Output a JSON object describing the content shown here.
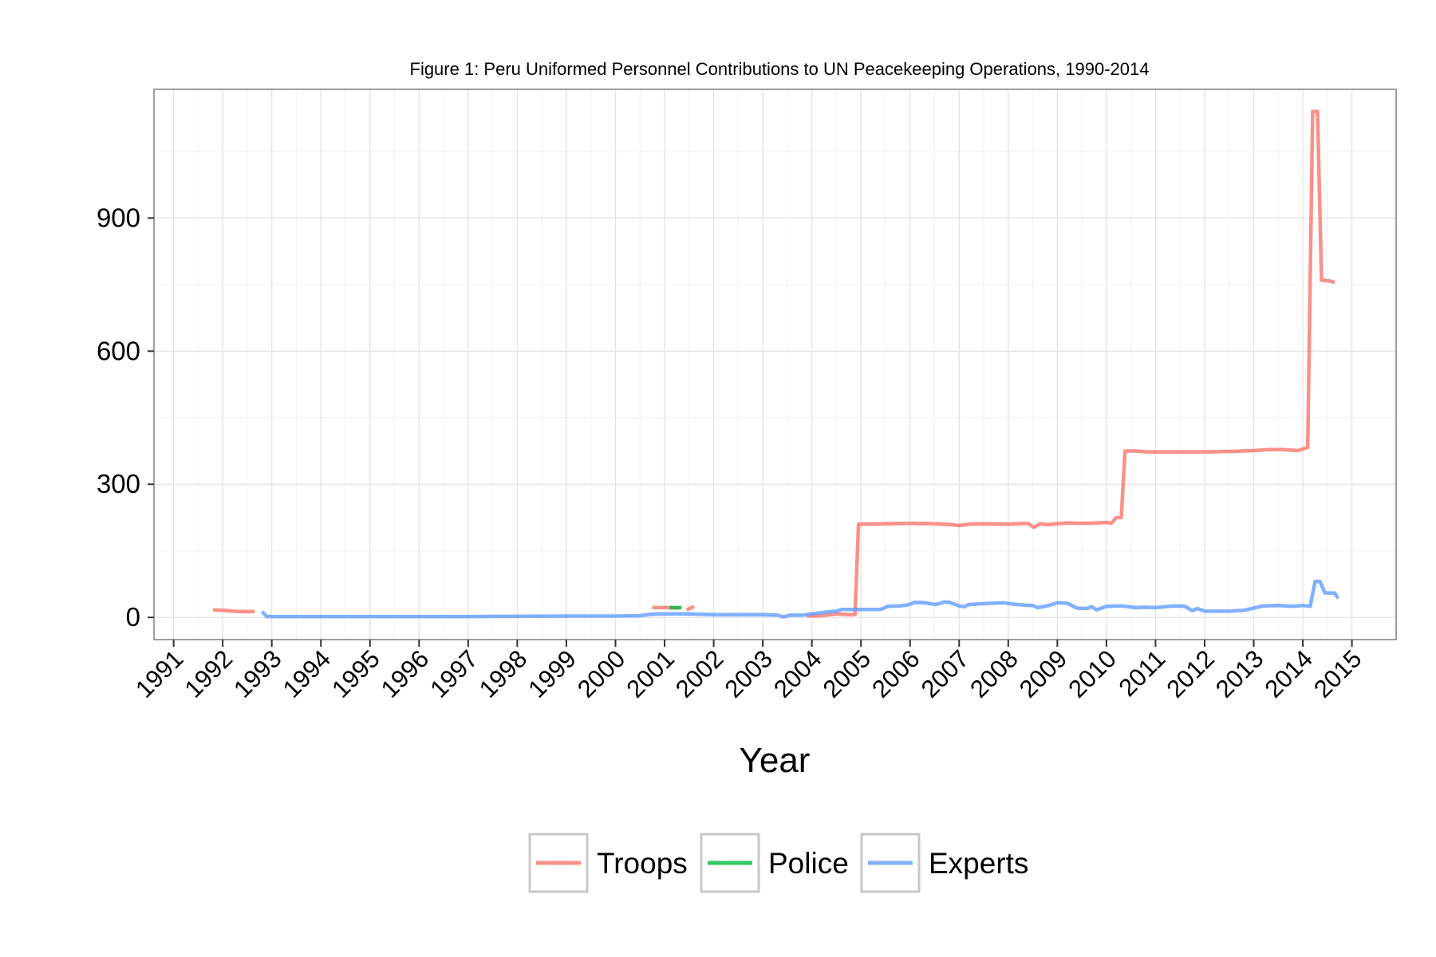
{
  "chart_data": {
    "type": "line",
    "title": "Figure 1: Peru Uniformed Personnel Contributions to UN Peacekeeping Operations, 1990-2014",
    "xlabel": "Year",
    "ylabel": "",
    "xlim": [
      1990.6,
      2015.9
    ],
    "ylim": [
      -50,
      1190
    ],
    "y_ticks": [
      0,
      300,
      600,
      900
    ],
    "x_ticks": [
      1991,
      1992,
      1993,
      1994,
      1995,
      1996,
      1997,
      1998,
      1999,
      2000,
      2001,
      2002,
      2003,
      2004,
      2005,
      2006,
      2007,
      2008,
      2009,
      2010,
      2011,
      2012,
      2013,
      2014,
      2015
    ],
    "grid": true,
    "legend_position": "bottom",
    "series": [
      {
        "name": "Troops",
        "color": "#F8766D",
        "segments": [
          [
            [
              1991.8,
              17
            ],
            [
              1992.0,
              16
            ],
            [
              1992.2,
              14
            ],
            [
              1992.4,
              13
            ],
            [
              1992.65,
              13
            ]
          ],
          [
            [
              2000.75,
              22
            ],
            [
              2001.05,
              22
            ],
            [
              2001.3,
              21
            ]
          ],
          [
            [
              2001.45,
              17
            ],
            [
              2001.6,
              25
            ]
          ],
          [
            [
              2003.9,
              3
            ],
            [
              2004.2,
              4
            ],
            [
              2004.5,
              8
            ],
            [
              2004.8,
              6
            ],
            [
              2004.88,
              7
            ],
            [
              2004.95,
              210
            ],
            [
              2005.2,
              210
            ],
            [
              2005.5,
              211
            ],
            [
              2006.0,
              212
            ],
            [
              2006.5,
              211
            ],
            [
              2006.85,
              209
            ],
            [
              2007.0,
              207
            ],
            [
              2007.2,
              210
            ],
            [
              2007.5,
              211
            ],
            [
              2007.8,
              210
            ],
            [
              2008.0,
              210
            ],
            [
              2008.2,
              211
            ],
            [
              2008.4,
              212
            ],
            [
              2008.52,
              203
            ],
            [
              2008.65,
              211
            ],
            [
              2008.8,
              209
            ],
            [
              2009.0,
              211
            ],
            [
              2009.2,
              213
            ],
            [
              2009.5,
              212
            ],
            [
              2009.8,
              213
            ],
            [
              2010.0,
              214
            ],
            [
              2010.1,
              212
            ],
            [
              2010.2,
              225
            ],
            [
              2010.3,
              225
            ],
            [
              2010.38,
              375
            ],
            [
              2010.6,
              375
            ],
            [
              2010.8,
              373
            ],
            [
              2011.0,
              373
            ],
            [
              2011.5,
              373
            ],
            [
              2012.0,
              373
            ],
            [
              2012.5,
              374
            ],
            [
              2013.0,
              376
            ],
            [
              2013.3,
              378
            ],
            [
              2013.6,
              378
            ],
            [
              2013.9,
              376
            ],
            [
              2014.1,
              383
            ],
            [
              2014.2,
              1140
            ],
            [
              2014.3,
              1140
            ],
            [
              2014.38,
              760
            ],
            [
              2014.55,
              758
            ],
            [
              2014.65,
              755
            ]
          ]
        ]
      },
      {
        "name": "Police",
        "color": "#00BA38",
        "segments": [
          [
            [
              2001.1,
              22
            ],
            [
              2001.35,
              22
            ]
          ]
        ]
      },
      {
        "name": "Experts",
        "color": "#619CFF",
        "segments": [
          [
            [
              1992.8,
              13
            ],
            [
              1992.9,
              2
            ],
            [
              1993.5,
              2
            ],
            [
              1995.0,
              2
            ],
            [
              1997.0,
              2
            ],
            [
              1999.0,
              3
            ],
            [
              2000.0,
              3
            ],
            [
              2000.5,
              4
            ],
            [
              2000.7,
              7
            ],
            [
              2001.0,
              8
            ],
            [
              2001.5,
              8
            ],
            [
              2002.0,
              6
            ],
            [
              2002.5,
              6
            ],
            [
              2003.0,
              6
            ],
            [
              2003.3,
              5
            ],
            [
              2003.42,
              1
            ],
            [
              2003.55,
              5
            ],
            [
              2003.8,
              5
            ],
            [
              2004.0,
              8
            ],
            [
              2004.3,
              12
            ],
            [
              2004.5,
              14
            ],
            [
              2004.6,
              18
            ],
            [
              2004.8,
              18
            ],
            [
              2005.2,
              18
            ],
            [
              2005.4,
              18
            ],
            [
              2005.55,
              25
            ],
            [
              2005.8,
              26
            ],
            [
              2005.95,
              28
            ],
            [
              2006.0,
              30
            ],
            [
              2006.1,
              34
            ],
            [
              2006.3,
              33
            ],
            [
              2006.5,
              29
            ],
            [
              2006.6,
              31
            ],
            [
              2006.7,
              35
            ],
            [
              2006.8,
              34
            ],
            [
              2007.0,
              26
            ],
            [
              2007.1,
              24
            ],
            [
              2007.2,
              29
            ],
            [
              2007.5,
              31
            ],
            [
              2007.7,
              32
            ],
            [
              2007.9,
              33
            ],
            [
              2008.1,
              30
            ],
            [
              2008.3,
              28
            ],
            [
              2008.5,
              27
            ],
            [
              2008.6,
              22
            ],
            [
              2008.8,
              26
            ],
            [
              2009.0,
              33
            ],
            [
              2009.2,
              32
            ],
            [
              2009.4,
              21
            ],
            [
              2009.6,
              20
            ],
            [
              2009.7,
              24
            ],
            [
              2009.8,
              17
            ],
            [
              2010.0,
              25
            ],
            [
              2010.3,
              26
            ],
            [
              2010.6,
              22
            ],
            [
              2010.8,
              23
            ],
            [
              2011.0,
              22
            ],
            [
              2011.4,
              26
            ],
            [
              2011.6,
              25
            ],
            [
              2011.75,
              15
            ],
            [
              2011.85,
              20
            ],
            [
              2012.0,
              14
            ],
            [
              2012.2,
              14
            ],
            [
              2012.5,
              14
            ],
            [
              2012.8,
              16
            ],
            [
              2013.0,
              21
            ],
            [
              2013.2,
              26
            ],
            [
              2013.5,
              27
            ],
            [
              2013.8,
              25
            ],
            [
              2014.0,
              27
            ],
            [
              2014.15,
              25
            ],
            [
              2014.25,
              81
            ],
            [
              2014.35,
              81
            ],
            [
              2014.45,
              55
            ],
            [
              2014.65,
              55
            ],
            [
              2014.72,
              43
            ]
          ]
        ]
      }
    ]
  }
}
